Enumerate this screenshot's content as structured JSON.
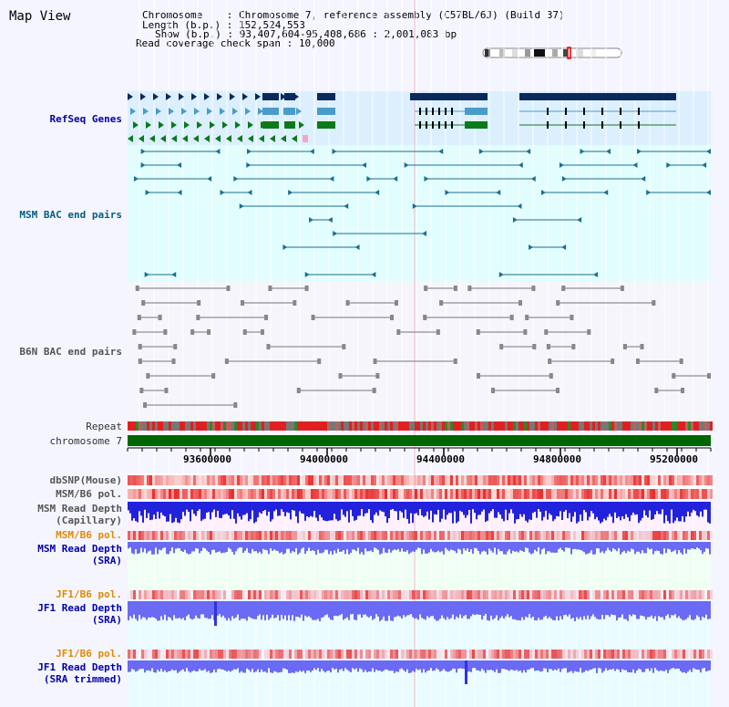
{
  "title": "Map View",
  "header": {
    "chromosome_label": "Chromosome",
    "chromosome_value": "Chromosome 7, reference assembly (C57BL/6J) (Build 37)",
    "length_label": "Length (b.p.)",
    "length_value": "152,524,553",
    "show_label": "Show (b.p.)",
    "show_value": "93,407,604-95,408,686 : 2,001,083 bp",
    "coverage_label": "Read coverage check span",
    "coverage_value": "10,000"
  },
  "tracks": {
    "refseq": "RefSeq Genes",
    "msm_bac": "MSM BAC end pairs",
    "b6n_bac": "B6N BAC end pairs",
    "repeat": "Repeat",
    "chromosome": "chromosome 7",
    "dbsnp": "dbSNP(Mouse)",
    "msm_b6_pol_1": "MSM/B6 pol.",
    "msm_depth_cap_1": "MSM Read Depth",
    "msm_depth_cap_2": "(Capillary)",
    "msm_b6_pol_2": "MSM/B6 pol.",
    "msm_depth_sra_1": "MSM Read Depth",
    "msm_depth_sra_2": "(SRA)",
    "jf1_b6_pol_1": "JF1/B6 pol.",
    "jf1_depth_sra_1": "JF1 Read Depth",
    "jf1_depth_sra_2": "(SRA)",
    "jf1_b6_pol_2": "JF1/B6 pol.",
    "jf1_depth_trim_1": "JF1 Read Depth",
    "jf1_depth_trim_2": "(SRA trimmed)"
  },
  "axis": {
    "ticks": [
      "93600000",
      "94000000",
      "94400000",
      "94800000",
      "95200000"
    ]
  },
  "colors": {
    "gene_navy": "#0b2a5c",
    "gene_teal": "#4a9cc8",
    "gene_green": "#0a7a1a",
    "msm_line": "#1a6f8f",
    "b6n_line": "#777777",
    "chrom_green": "#006600",
    "depth_blue": "#2222dd",
    "depth_light": "#6a6af5"
  }
}
